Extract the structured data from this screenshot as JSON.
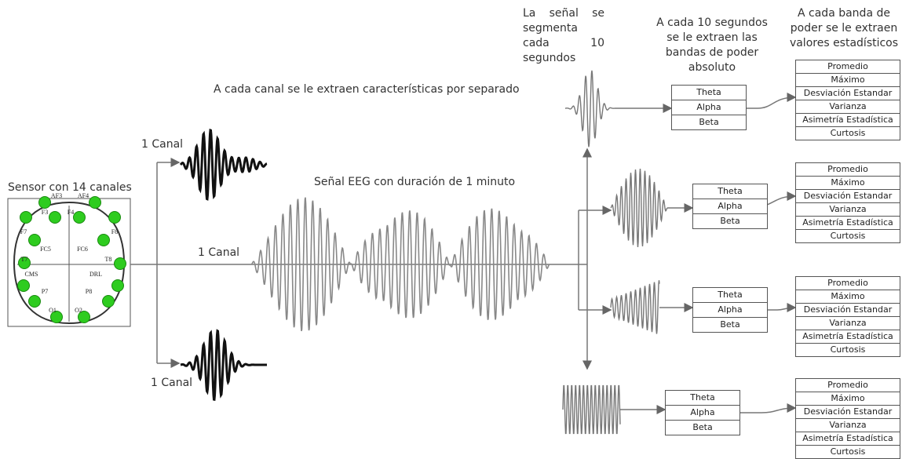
{
  "sensor": {
    "title": "Sensor con 14 canales",
    "electrodes": [
      "AF3",
      "AF4",
      "F7",
      "F3",
      "F4",
      "F8",
      "FC5",
      "FC6",
      "T7",
      "T8",
      "CMS",
      "DRL",
      "P7",
      "P8",
      "O1",
      "O2"
    ]
  },
  "channel_labels": [
    "1 Canal",
    "1 Canal",
    "1 Canal"
  ],
  "captions": {
    "per_channel": "A cada canal se le extraen características por separado",
    "eeg_signal": "Señal EEG con duración de 1 minuto",
    "segmentation": "La señal se segmenta cada 10 segundos",
    "bands_step": "A cada 10 segundos se le extraen las bandas de poder absoluto",
    "stats_step": "A cada banda de poder se le extraen valores estadísticos"
  },
  "segments": [
    {
      "bands": [
        "Theta",
        "Alpha",
        "Beta"
      ],
      "stats": [
        "Promedio",
        "Máximo",
        "Desviación Estandar",
        "Varianza",
        "Asimetría Estadística",
        "Curtosis"
      ]
    },
    {
      "bands": [
        "Theta",
        "Alpha",
        "Beta"
      ],
      "stats": [
        "Promedio",
        "Máximo",
        "Desviación Estandar",
        "Varianza",
        "Asimetría Estadística",
        "Curtosis"
      ]
    },
    {
      "bands": [
        "Theta",
        "Alpha",
        "Beta"
      ],
      "stats": [
        "Promedio",
        "Máximo",
        "Desviación Estandar",
        "Varianza",
        "Asimetría Estadística",
        "Curtosis"
      ]
    },
    {
      "bands": [
        "Theta",
        "Alpha",
        "Beta"
      ],
      "stats": [
        "Promedio",
        "Máximo",
        "Desviación Estandar",
        "Varianza",
        "Asimetría Estadística",
        "Curtosis"
      ]
    }
  ]
}
